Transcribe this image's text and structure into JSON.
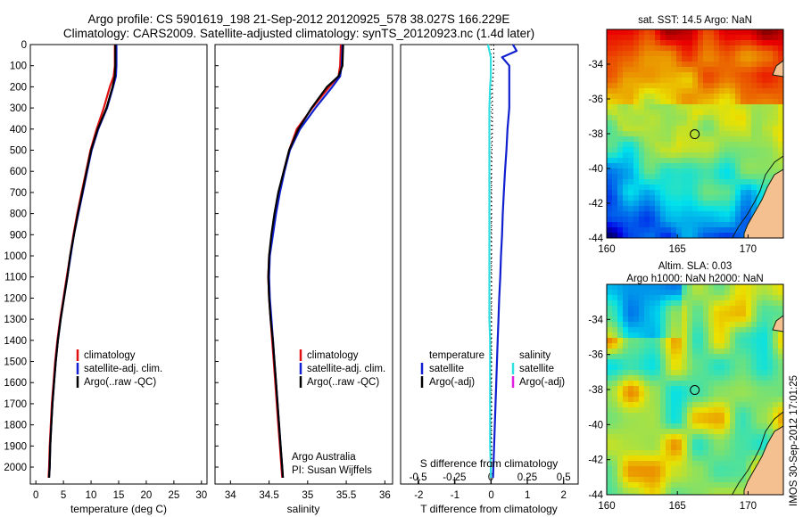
{
  "header": {
    "line1": "Argo profile: CS 5901619_198 21-Sep-2012 20120925_578 38.027S 166.229E",
    "line2": "Climatology: CARS2009. Satellite-adjusted climatology: synTS_20120923.nc (1.4d later)"
  },
  "footer": {
    "credit_line1": "Argo Australia",
    "credit_line2": "PI: Susan Wijffels",
    "timestamp": "IMOS 30-Sep-2012 17:01:25"
  },
  "colors": {
    "climatology": "#e01010",
    "satellite": "#1020d0",
    "argo": "#000000",
    "salinity_satellite": "#30e0e0",
    "argo_adj_salinity": "#e020e0",
    "land": "#f5c090",
    "coast": "#102010"
  },
  "chart_data": [
    {
      "type": "line",
      "name": "temperature-profile",
      "xlabel": "temperature (deg C)",
      "ylabel": "",
      "xlim": [
        -1,
        31
      ],
      "ylim": [
        2080,
        0
      ],
      "xticks": [
        0,
        5,
        10,
        15,
        20,
        25,
        30
      ],
      "yticks": [
        0,
        100,
        200,
        300,
        400,
        500,
        600,
        700,
        800,
        900,
        1000,
        1100,
        1200,
        1300,
        1400,
        1500,
        1600,
        1700,
        1800,
        1900,
        2000
      ],
      "legend": [
        "climatology",
        "satellite-adj. clim.",
        "Argo(..raw -QC)"
      ],
      "legend_position": "lower-middle",
      "series": [
        {
          "name": "climatology",
          "color": "#e01010",
          "depth": [
            0,
            50,
            100,
            150,
            200,
            300,
            400,
            500,
            600,
            700,
            800,
            900,
            1000,
            1100,
            1200,
            1300,
            1400,
            1500,
            1600,
            1700,
            1800,
            1900,
            2000,
            2050
          ],
          "values": [
            14.3,
            14.3,
            14.3,
            14.1,
            13.4,
            12.3,
            11.0,
            9.9,
            9.1,
            8.3,
            7.5,
            6.8,
            6.2,
            5.6,
            5.0,
            4.4,
            3.9,
            3.5,
            3.2,
            2.9,
            2.7,
            2.5,
            2.4,
            2.3
          ]
        },
        {
          "name": "satellite-adj. clim.",
          "color": "#1020d0",
          "depth": [
            0,
            50,
            100,
            150,
            200,
            300,
            400,
            500,
            600,
            700,
            800,
            900,
            1000,
            1100,
            1200,
            1300,
            1400,
            1500,
            1600,
            1700,
            1800,
            1900,
            2000,
            2050
          ],
          "values": [
            14.6,
            14.6,
            14.6,
            14.5,
            14.0,
            12.9,
            11.3,
            10.1,
            9.3,
            8.5,
            7.7,
            6.9,
            6.3,
            5.7,
            5.1,
            4.5,
            4.0,
            3.6,
            3.3,
            3.0,
            2.8,
            2.6,
            2.5,
            2.4
          ]
        },
        {
          "name": "Argo(..raw -QC)",
          "color": "#000000",
          "depth": [
            0,
            50,
            100,
            150,
            200,
            300,
            400,
            500,
            600,
            700,
            800,
            900,
            1000,
            1100,
            1200,
            1300,
            1400,
            1500,
            1600,
            1700,
            1800,
            1900,
            2000,
            2050
          ],
          "values": [
            14.4,
            14.4,
            14.4,
            14.3,
            13.9,
            12.8,
            11.2,
            10.0,
            9.2,
            8.4,
            7.6,
            6.9,
            6.2,
            5.7,
            5.1,
            4.5,
            4.0,
            3.6,
            3.3,
            3.0,
            2.8,
            2.6,
            2.5,
            2.4
          ]
        }
      ]
    },
    {
      "type": "line",
      "name": "salinity-profile",
      "xlabel": "salinity",
      "ylabel": "",
      "xlim": [
        33.8,
        36.1
      ],
      "ylim": [
        2080,
        0
      ],
      "xticks": [
        34,
        34.5,
        35,
        35.5,
        36
      ],
      "legend": [
        "climatology",
        "satellite-adj. clim.",
        "Argo(..raw -QC)"
      ],
      "legend_position": "lower-middle",
      "series": [
        {
          "name": "climatology",
          "color": "#e01010",
          "depth": [
            0,
            100,
            150,
            200,
            300,
            400,
            500,
            600,
            700,
            800,
            900,
            1000,
            1100,
            1200,
            1300,
            1400,
            1500,
            1600,
            1700,
            1800,
            1900,
            2000,
            2050
          ],
          "values": [
            35.43,
            35.42,
            35.4,
            35.28,
            35.06,
            34.86,
            34.76,
            34.69,
            34.63,
            34.58,
            34.54,
            34.5,
            34.49,
            34.5,
            34.52,
            34.54,
            34.56,
            34.58,
            34.6,
            34.62,
            34.64,
            34.66,
            34.67
          ]
        },
        {
          "name": "satellite-adj. clim.",
          "color": "#1020d0",
          "depth": [
            0,
            100,
            150,
            200,
            300,
            400,
            500,
            600,
            700,
            800,
            900,
            1000,
            1100,
            1200,
            1300,
            1400,
            1500,
            1600,
            1700,
            1800,
            1900,
            2000,
            2050
          ],
          "values": [
            35.45,
            35.44,
            35.42,
            35.32,
            35.1,
            34.9,
            34.77,
            34.7,
            34.64,
            34.59,
            34.55,
            34.51,
            34.5,
            34.51,
            34.53,
            34.55,
            34.57,
            34.59,
            34.61,
            34.63,
            34.65,
            34.67,
            34.68
          ]
        },
        {
          "name": "Argo(..raw -QC)",
          "color": "#000000",
          "depth": [
            0,
            100,
            150,
            200,
            300,
            400,
            500,
            600,
            700,
            800,
            900,
            1000,
            1100,
            1200,
            1300,
            1400,
            1500,
            1600,
            1700,
            1800,
            1900,
            2000,
            2050
          ],
          "values": [
            35.46,
            35.45,
            35.4,
            35.25,
            35.05,
            34.88,
            34.76,
            34.69,
            34.62,
            34.57,
            34.53,
            34.5,
            34.49,
            34.5,
            34.52,
            34.55,
            34.57,
            34.59,
            34.61,
            34.63,
            34.65,
            34.67,
            34.68
          ]
        }
      ]
    },
    {
      "type": "line",
      "name": "difference-profile",
      "xlabel": "T difference from climatology",
      "x2label": "S difference from climatology",
      "ylabel": "",
      "xlim": [
        -2.5,
        2.4
      ],
      "x2lim": [
        -0.62,
        0.6
      ],
      "ylim": [
        2080,
        0
      ],
      "xticks": [
        -2,
        -1,
        0,
        1,
        2
      ],
      "x2ticks": [
        -0.5,
        -0.25,
        0,
        0.25,
        0.5
      ],
      "x2ticklabels": [
        "-0.5",
        "-0.25",
        "0",
        "0.25",
        "0.5"
      ],
      "legend_temperature_title": "temperature",
      "legend_salinity_title": "salinity",
      "legend_items_temperature": [
        "satellite",
        "Argo(-adj)"
      ],
      "legend_items_salinity": [
        "satellite",
        "Argo(-adj)"
      ],
      "legend_position": "lower-middle",
      "series": [
        {
          "name": "temperature satellite",
          "color": "#1020d0",
          "axis": "x",
          "depth": [
            0,
            30,
            60,
            100,
            150,
            200,
            300,
            400,
            500,
            600,
            700,
            800,
            900,
            1000,
            1100,
            1200,
            1300,
            1400,
            1500,
            1600,
            1700,
            1800,
            1900,
            2000,
            2050
          ],
          "values": [
            0.6,
            0.7,
            0.3,
            0.5,
            0.5,
            0.5,
            0.5,
            0.45,
            0.42,
            0.38,
            0.35,
            0.32,
            0.3,
            0.27,
            0.25,
            0.22,
            0.2,
            0.18,
            0.16,
            0.14,
            0.12,
            0.1,
            0.08,
            0.06,
            0.05
          ]
        },
        {
          "name": "salinity satellite",
          "color": "#30e0e0",
          "axis": "x2",
          "depth": [
            0,
            30,
            60,
            100,
            150,
            200,
            300,
            400,
            500,
            600,
            700,
            800,
            900,
            1000,
            1100,
            1200,
            1300,
            1400,
            1500,
            1600,
            1700,
            1800,
            1900,
            2000,
            2050
          ],
          "values": [
            -0.02,
            -0.01,
            0.0,
            0.0,
            0.0,
            -0.005,
            -0.01,
            -0.01,
            -0.01,
            -0.01,
            -0.01,
            -0.01,
            -0.01,
            -0.01,
            -0.01,
            -0.01,
            -0.01,
            -0.005,
            -0.005,
            -0.005,
            -0.005,
            -0.005,
            -0.005,
            0.0,
            0.0
          ]
        },
        {
          "name": "Argo(-adj) salinity",
          "color": "#000000",
          "axis": "x2",
          "dotted": true,
          "depth": [
            0,
            100,
            200,
            400,
            600,
            800,
            1000,
            1200,
            1400,
            1600,
            1800,
            2000
          ],
          "values": [
            0.02,
            0.02,
            0.01,
            0.01,
            0.005,
            0.005,
            0.005,
            0.005,
            0.005,
            0.005,
            0.005,
            0.005
          ]
        }
      ]
    },
    {
      "type": "heatmap",
      "name": "sst-map",
      "title": "sat. SST: 14.5 Argo: NaN",
      "xlim": [
        160,
        172.5
      ],
      "ylim": [
        -44,
        -32
      ],
      "xticks": [
        160,
        165,
        170
      ],
      "yticks": [
        -34,
        -36,
        -38,
        -40,
        -42,
        -44
      ],
      "marker": {
        "lon": 166.229,
        "lat": -38.027
      }
    },
    {
      "type": "heatmap",
      "name": "sla-map",
      "title_line1": "Altim. SLA: 0.03",
      "title_line2": "Argo h1000: NaN h2000: NaN",
      "xlim": [
        160,
        172.5
      ],
      "ylim": [
        -44,
        -32
      ],
      "xticks": [
        160,
        165,
        170
      ],
      "yticks": [
        -34,
        -36,
        -38,
        -40,
        -42,
        -44
      ],
      "marker": {
        "lon": 166.229,
        "lat": -38.027
      }
    }
  ]
}
